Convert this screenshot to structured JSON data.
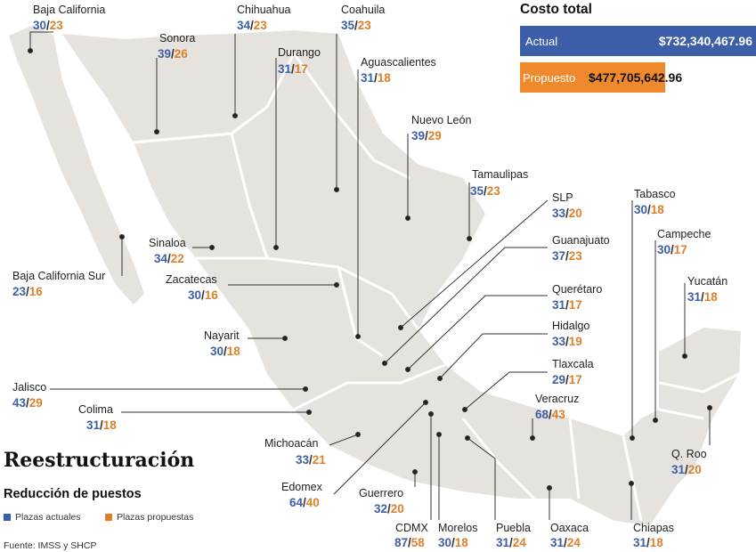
{
  "title": "Reestructuración",
  "subtitle": "Reducción de puestos",
  "legend": {
    "current": "Plazas actuales",
    "proposed": "Plazas propuestas",
    "current_color": "#3d5ea8",
    "proposed_color": "#e07f2a"
  },
  "source": "Fuente: IMSS y SHCP",
  "cost": {
    "title": "Costo total",
    "actual_label": "Actual",
    "actual_value": "$732,340,467.96",
    "proposed_label": "Propuesto",
    "proposed_value": "$477,705,642.96"
  },
  "states": [
    {
      "name": "Baja California",
      "current": "30",
      "proposed": "23"
    },
    {
      "name": "Sonora",
      "current": "39",
      "proposed": "26"
    },
    {
      "name": "Chihuahua",
      "current": "34",
      "proposed": "23"
    },
    {
      "name": "Durango",
      "current": "31",
      "proposed": "17"
    },
    {
      "name": "Coahuila",
      "current": "35",
      "proposed": "23"
    },
    {
      "name": "Aguascalientes",
      "current": "31",
      "proposed": "18"
    },
    {
      "name": "Nuevo León",
      "current": "39",
      "proposed": "29"
    },
    {
      "name": "Tamaulipas",
      "current": "35",
      "proposed": "23"
    },
    {
      "name": "SLP",
      "current": "33",
      "proposed": "20"
    },
    {
      "name": "Guanajuato",
      "current": "37",
      "proposed": "23"
    },
    {
      "name": "Querétaro",
      "current": "31",
      "proposed": "17"
    },
    {
      "name": "Hidalgo",
      "current": "33",
      "proposed": "19"
    },
    {
      "name": "Tlaxcala",
      "current": "29",
      "proposed": "17"
    },
    {
      "name": "Veracruz",
      "current": "68",
      "proposed": "43"
    },
    {
      "name": "Tabasco",
      "current": "30",
      "proposed": "18"
    },
    {
      "name": "Campeche",
      "current": "30",
      "proposed": "17"
    },
    {
      "name": "Yucatán",
      "current": "31",
      "proposed": "18"
    },
    {
      "name": "Q. Roo",
      "current": "31",
      "proposed": "20"
    },
    {
      "name": "Chiapas",
      "current": "31",
      "proposed": "18"
    },
    {
      "name": "Oaxaca",
      "current": "31",
      "proposed": "24"
    },
    {
      "name": "Puebla",
      "current": "31",
      "proposed": "24"
    },
    {
      "name": "Morelos",
      "current": "30",
      "proposed": "18"
    },
    {
      "name": "CDMX",
      "current": "87",
      "proposed": "58"
    },
    {
      "name": "Guerrero",
      "current": "32",
      "proposed": "20"
    },
    {
      "name": "Edomex",
      "current": "64",
      "proposed": "40"
    },
    {
      "name": "Michoacán",
      "current": "33",
      "proposed": "21"
    },
    {
      "name": "Colima",
      "current": "31",
      "proposed": "18"
    },
    {
      "name": "Jalisco",
      "current": "43",
      "proposed": "29"
    },
    {
      "name": "Nayarit",
      "current": "30",
      "proposed": "18"
    },
    {
      "name": "Zacatecas",
      "current": "30",
      "proposed": "16"
    },
    {
      "name": "Sinaloa",
      "current": "34",
      "proposed": "22"
    },
    {
      "name": "Baja California Sur",
      "current": "23",
      "proposed": "16"
    }
  ]
}
